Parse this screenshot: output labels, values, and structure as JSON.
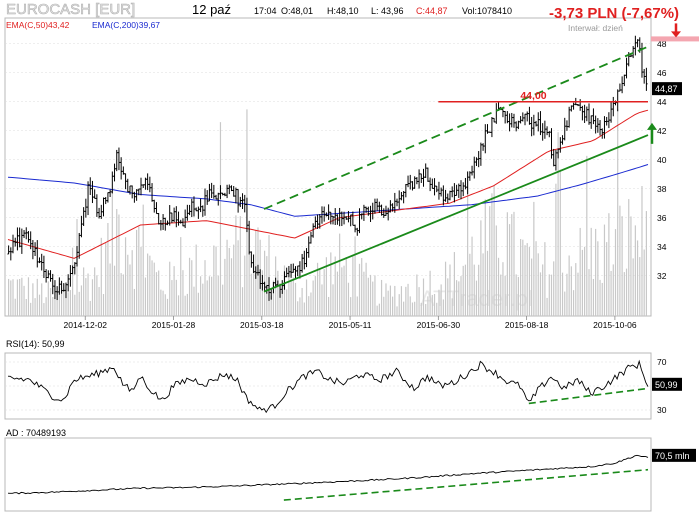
{
  "header": {
    "symbol": "EUROCASH [EUR]",
    "date": "12 paź",
    "time": "17:04",
    "open": "O:48,01",
    "high": "H:48,10",
    "low": "L: 43,96",
    "close": "C:44,87",
    "volume": "Vol:1078410",
    "change": "-3,73 PLN (-7,67%)",
    "interval": "Interwał: dzień",
    "ema50": "EMA(C,50)43,42",
    "ema200": "EMA(C,200)39,67",
    "watermark": "ATTrader.pl"
  },
  "colors": {
    "price": "#000000",
    "ema50": "#e02020",
    "ema200": "#1a2ad0",
    "volume": "#c8c8c8",
    "trend": "#1a8a1a",
    "resistance": "#e02020",
    "change_text": "#e02020",
    "grid": "#dddddd"
  },
  "chart_data": [
    {
      "type": "line",
      "panel": "price",
      "ylim": [
        29.5,
        49.5
      ],
      "yticks": [
        32,
        34,
        36,
        38,
        40,
        42,
        44,
        46,
        48
      ],
      "x_tick_labels": [
        "2014-12-02",
        "2015-01-28",
        "2015-03-18",
        "2015-05-11",
        "2015-06-30",
        "2015-08-18",
        "2015-10-06"
      ],
      "x_tick_index": [
        35,
        75,
        115,
        155,
        195,
        235,
        275
      ],
      "n_bars": 290,
      "series": [
        {
          "name": "EMA(C,50)",
          "values": [
            [
              0,
              34.5
            ],
            [
              30,
              33.2
            ],
            [
              60,
              35.5
            ],
            [
              90,
              35.8
            ],
            [
              110,
              35.2
            ],
            [
              130,
              34.6
            ],
            [
              150,
              36.0
            ],
            [
              180,
              36.6
            ],
            [
              200,
              37.0
            ],
            [
              220,
              38.2
            ],
            [
              245,
              40.6
            ],
            [
              265,
              41.3
            ],
            [
              285,
              43.2
            ],
            [
              290,
              43.42
            ]
          ]
        },
        {
          "name": "EMA(C,200)",
          "values": [
            [
              0,
              38.8
            ],
            [
              30,
              38.4
            ],
            [
              60,
              37.6
            ],
            [
              90,
              37.3
            ],
            [
              110,
              36.9
            ],
            [
              130,
              36.1
            ],
            [
              150,
              36.3
            ],
            [
              180,
              36.6
            ],
            [
              210,
              36.9
            ],
            [
              240,
              37.5
            ],
            [
              260,
              38.3
            ],
            [
              280,
              39.2
            ],
            [
              290,
              39.67
            ]
          ]
        }
      ],
      "close_path": [
        [
          0,
          33.5
        ],
        [
          8,
          34.8
        ],
        [
          15,
          33.0
        ],
        [
          22,
          31.3
        ],
        [
          27,
          31.0
        ],
        [
          32,
          33.8
        ],
        [
          37,
          38.0
        ],
        [
          42,
          36.5
        ],
        [
          47,
          37.8
        ],
        [
          50,
          40.5
        ],
        [
          54,
          38.5
        ],
        [
          58,
          37.2
        ],
        [
          62,
          38.6
        ],
        [
          66,
          37.6
        ],
        [
          70,
          35.5
        ],
        [
          75,
          36.2
        ],
        [
          80,
          35.5
        ],
        [
          84,
          37.0
        ],
        [
          88,
          36.5
        ],
        [
          92,
          37.7
        ],
        [
          96,
          37.4
        ],
        [
          100,
          38.0
        ],
        [
          104,
          37.6
        ],
        [
          108,
          36.5
        ],
        [
          111,
          32.8
        ],
        [
          115,
          31.5
        ],
        [
          120,
          31.0
        ],
        [
          125,
          31.6
        ],
        [
          130,
          32.5
        ],
        [
          135,
          33.0
        ],
        [
          138,
          34.7
        ],
        [
          142,
          36.0
        ],
        [
          146,
          36.5
        ],
        [
          150,
          35.9
        ],
        [
          155,
          36.2
        ],
        [
          158,
          35.2
        ],
        [
          162,
          36.4
        ],
        [
          167,
          36.7
        ],
        [
          172,
          36.1
        ],
        [
          176,
          37.0
        ],
        [
          180,
          37.8
        ],
        [
          185,
          38.3
        ],
        [
          190,
          39.2
        ],
        [
          195,
          37.8
        ],
        [
          200,
          37.5
        ],
        [
          205,
          38.2
        ],
        [
          210,
          38.7
        ],
        [
          214,
          40.5
        ],
        [
          218,
          42.0
        ],
        [
          222,
          43.2
        ],
        [
          226,
          43.2
        ],
        [
          230,
          42.6
        ],
        [
          234,
          42.9
        ],
        [
          238,
          42.6
        ],
        [
          242,
          42.3
        ],
        [
          246,
          41.5
        ],
        [
          248,
          39.8
        ],
        [
          252,
          41.8
        ],
        [
          256,
          43.4
        ],
        [
          260,
          43.5
        ],
        [
          264,
          43.0
        ],
        [
          268,
          42.1
        ],
        [
          272,
          42.5
        ],
        [
          276,
          44.0
        ],
        [
          280,
          45.5
        ],
        [
          283,
          47.6
        ],
        [
          286,
          48.0
        ],
        [
          290,
          44.87
        ]
      ],
      "volume_path": [
        [
          0,
          0.15
        ],
        [
          20,
          0.1
        ],
        [
          40,
          0.2
        ],
        [
          50,
          0.45
        ],
        [
          70,
          0.15
        ],
        [
          110,
          0.35
        ],
        [
          130,
          0.12
        ],
        [
          150,
          0.25
        ],
        [
          170,
          0.1
        ],
        [
          200,
          0.18
        ],
        [
          220,
          0.4
        ],
        [
          240,
          0.22
        ],
        [
          265,
          0.3
        ],
        [
          290,
          0.42
        ]
      ],
      "trendlines": [
        {
          "name": "lower support",
          "style": "solid",
          "from": [
            116,
            30.9
          ],
          "to": [
            290,
            41.7
          ]
        },
        {
          "name": "upper channel",
          "style": "dashed",
          "from": [
            116,
            36.6
          ],
          "to": [
            290,
            47.8
          ]
        }
      ],
      "resistance": {
        "label": "44,00",
        "value": 44.0,
        "from": 195,
        "to": 290
      },
      "last_price_label": "44,87",
      "pink_marker": 48.3
    },
    {
      "type": "line",
      "panel": "rsi",
      "title": "RSI(14): 50,99",
      "ylim": [
        25,
        75
      ],
      "yticks": [
        30,
        50,
        70
      ],
      "last_value_label": "50,99",
      "values": [
        [
          0,
          57
        ],
        [
          10,
          55
        ],
        [
          20,
          42
        ],
        [
          25,
          38
        ],
        [
          30,
          55
        ],
        [
          40,
          60
        ],
        [
          48,
          66
        ],
        [
          52,
          52
        ],
        [
          56,
          45
        ],
        [
          60,
          58
        ],
        [
          66,
          44
        ],
        [
          70,
          38
        ],
        [
          75,
          50
        ],
        [
          82,
          56
        ],
        [
          90,
          52
        ],
        [
          98,
          60
        ],
        [
          104,
          55
        ],
        [
          108,
          40
        ],
        [
          114,
          30
        ],
        [
          120,
          32
        ],
        [
          126,
          45
        ],
        [
          134,
          58
        ],
        [
          140,
          62
        ],
        [
          146,
          55
        ],
        [
          152,
          52
        ],
        [
          160,
          60
        ],
        [
          168,
          55
        ],
        [
          176,
          62
        ],
        [
          184,
          48
        ],
        [
          190,
          58
        ],
        [
          196,
          50
        ],
        [
          202,
          53
        ],
        [
          208,
          60
        ],
        [
          214,
          68
        ],
        [
          220,
          62
        ],
        [
          226,
          54
        ],
        [
          232,
          50
        ],
        [
          236,
          35
        ],
        [
          240,
          46
        ],
        [
          246,
          58
        ],
        [
          252,
          48
        ],
        [
          258,
          55
        ],
        [
          264,
          44
        ],
        [
          270,
          50
        ],
        [
          276,
          58
        ],
        [
          282,
          66
        ],
        [
          286,
          68
        ],
        [
          290,
          51
        ]
      ],
      "trendline": {
        "style": "dashed",
        "from": [
          236,
          35.5
        ],
        "to": [
          290,
          48
        ]
      }
    },
    {
      "type": "line",
      "panel": "ad",
      "title": "AD : 70489193",
      "last_value_label": "70,5 mln",
      "ylim": [
        0,
        100
      ],
      "values": [
        [
          0,
          22
        ],
        [
          20,
          24
        ],
        [
          40,
          27
        ],
        [
          60,
          30
        ],
        [
          80,
          31
        ],
        [
          100,
          33
        ],
        [
          115,
          35
        ],
        [
          130,
          37
        ],
        [
          150,
          40
        ],
        [
          170,
          43
        ],
        [
          190,
          47
        ],
        [
          210,
          52
        ],
        [
          230,
          56
        ],
        [
          250,
          60
        ],
        [
          265,
          63
        ],
        [
          275,
          68
        ],
        [
          285,
          80
        ],
        [
          290,
          76
        ]
      ],
      "trendline": {
        "style": "dashed",
        "from": [
          125,
          12
        ],
        "to": [
          290,
          58
        ]
      }
    }
  ]
}
